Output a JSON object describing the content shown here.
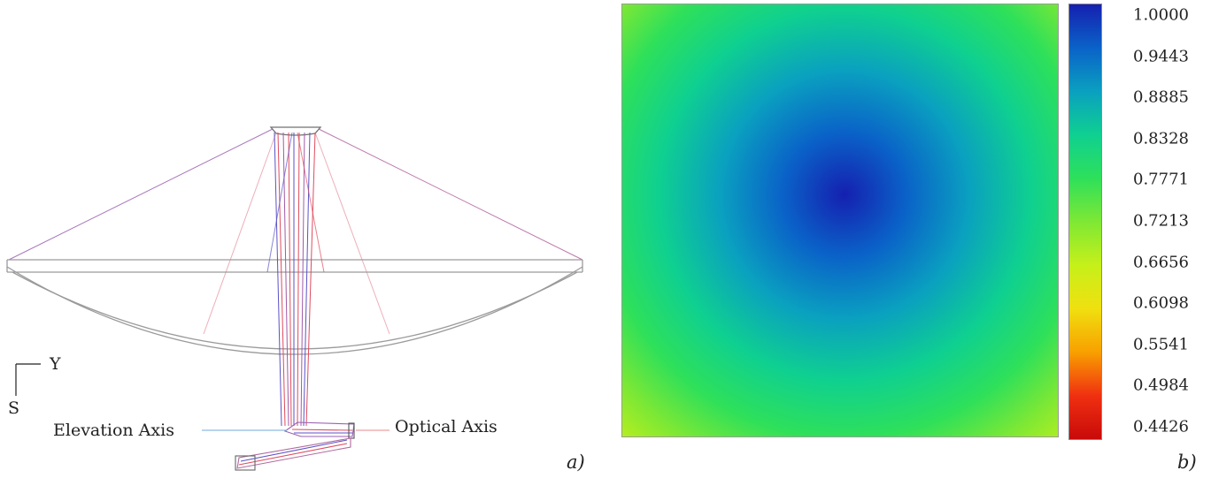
{
  "panel_a": {
    "axis_y": "Y",
    "axis_s": "S",
    "elevation_axis_label": "Elevation Axis",
    "optical_axis_label": "Optical Axis",
    "panel_tag": "a)",
    "colors": {
      "structure": "#8c8c8c",
      "ray_blue": "#5a52c8",
      "ray_red": "#e04b5e",
      "ray_magenta": "#a05aa8",
      "elevation_axis": "#6fa8dc",
      "optical_axis": "#e58a8a"
    }
  },
  "panel_b": {
    "panel_tag": "b)",
    "colorbar_ticks": [
      "1.0000",
      "0.9443",
      "0.8885",
      "0.8328",
      "0.7771",
      "0.7213",
      "0.6656",
      "0.6098",
      "0.5541",
      "0.4984",
      "0.4426"
    ],
    "colorbar_min": 0.4426,
    "colorbar_max": 1.0,
    "colormap": [
      "#1520b0",
      "#0a62c8",
      "#0aa0c0",
      "#0fd090",
      "#2ee05a",
      "#7ee834",
      "#c6f01a",
      "#f0e010",
      "#f8a000",
      "#f03010",
      "#c80a0a"
    ]
  }
}
